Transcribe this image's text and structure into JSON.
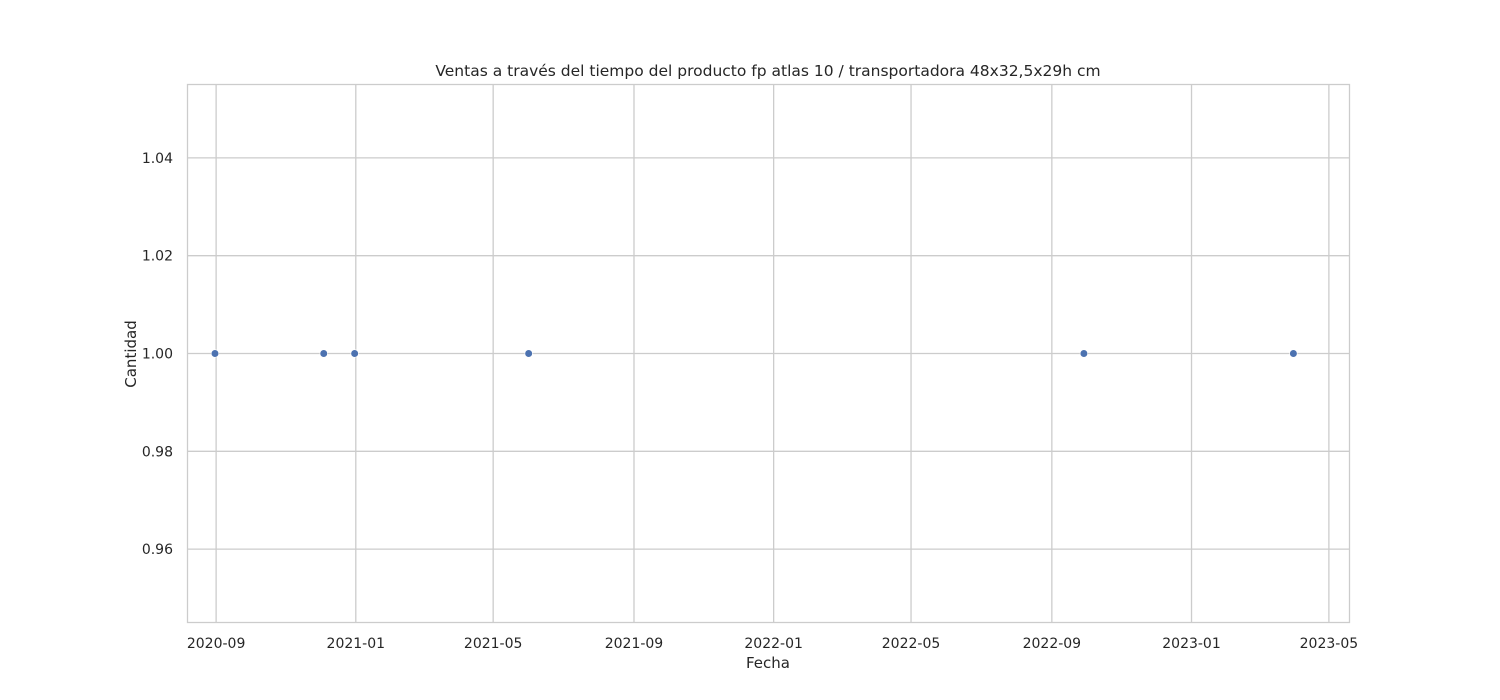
{
  "chart_data": {
    "type": "scatter",
    "title": "Ventas a través del tiempo del producto fp atlas 10 / transportadora 48x32,5x29h cm",
    "xlabel": "Fecha",
    "ylabel": "Cantidad",
    "x_type": "date",
    "xlim": [
      "2020-08-07",
      "2023-05-19"
    ],
    "ylim": [
      0.945,
      1.055
    ],
    "x_ticks": [
      "2020-09-01",
      "2021-01-01",
      "2021-05-01",
      "2021-09-01",
      "2022-01-01",
      "2022-05-01",
      "2022-09-01",
      "2023-01-01",
      "2023-05-01"
    ],
    "x_tick_labels": [
      "2020-09",
      "2021-01",
      "2021-05",
      "2021-09",
      "2022-01",
      "2022-05",
      "2022-09",
      "2023-01",
      "2023-05"
    ],
    "y_ticks": [
      0.96,
      0.98,
      1.0,
      1.02,
      1.04
    ],
    "y_tick_labels": [
      "0.96",
      "0.98",
      "1.00",
      "1.02",
      "1.04"
    ],
    "grid": true,
    "marker_color": "#4c72b0",
    "points": [
      {
        "x": "2020-08-31",
        "y": 1
      },
      {
        "x": "2020-12-04",
        "y": 1
      },
      {
        "x": "2020-12-31",
        "y": 1
      },
      {
        "x": "2021-06-01",
        "y": 1
      },
      {
        "x": "2022-09-29",
        "y": 1
      },
      {
        "x": "2023-03-31",
        "y": 1
      }
    ]
  }
}
